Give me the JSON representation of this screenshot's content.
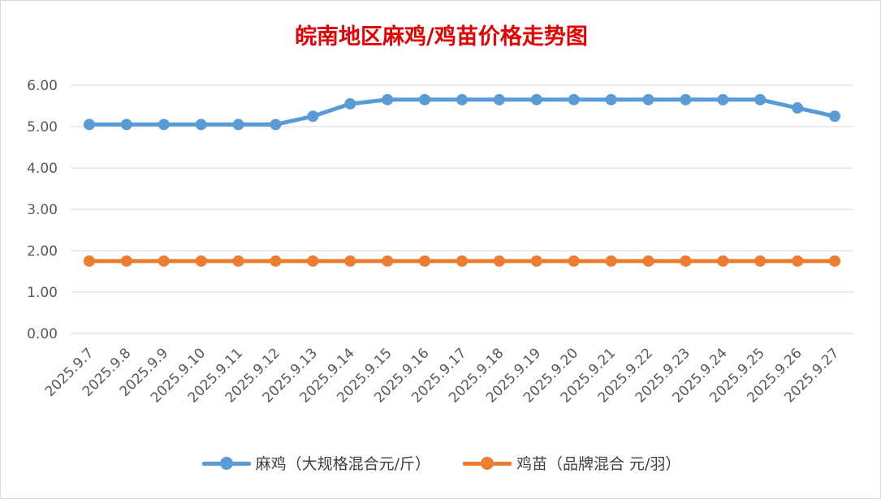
{
  "chart_data": {
    "type": "line",
    "title": "皖南地区麻鸡/鸡苗价格走势图",
    "xlabel": "",
    "ylabel": "",
    "ylim": [
      0,
      6
    ],
    "yticks": [
      "0.00",
      "1.00",
      "2.00",
      "3.00",
      "4.00",
      "5.00",
      "6.00"
    ],
    "grid": true,
    "legend_position": "bottom",
    "categories": [
      "2025.9.7",
      "2025.9.8",
      "2025.9.9",
      "2025.9.10",
      "2025.9.11",
      "2025.9.12",
      "2025.9.13",
      "2025.9.14",
      "2025.9.15",
      "2025.9.16",
      "2025.9.17",
      "2025.9.18",
      "2025.9.19",
      "2025.9.20",
      "2025.9.21",
      "2025.9.22",
      "2025.9.23",
      "2025.9.24",
      "2025.9.25",
      "2025.9.26",
      "2025.9.27"
    ],
    "series": [
      {
        "name": "麻鸡（大规格混合元/斤）",
        "color": "#5b9bd5",
        "values": [
          5.05,
          5.05,
          5.05,
          5.05,
          5.05,
          5.05,
          5.25,
          5.55,
          5.65,
          5.65,
          5.65,
          5.65,
          5.65,
          5.65,
          5.65,
          5.65,
          5.65,
          5.65,
          5.65,
          5.45,
          5.25
        ]
      },
      {
        "name": "鸡苗（品牌混合 元/羽）",
        "color": "#ed7d31",
        "values": [
          1.75,
          1.75,
          1.75,
          1.75,
          1.75,
          1.75,
          1.75,
          1.75,
          1.75,
          1.75,
          1.75,
          1.75,
          1.75,
          1.75,
          1.75,
          1.75,
          1.75,
          1.75,
          1.75,
          1.75,
          1.75
        ]
      }
    ]
  }
}
